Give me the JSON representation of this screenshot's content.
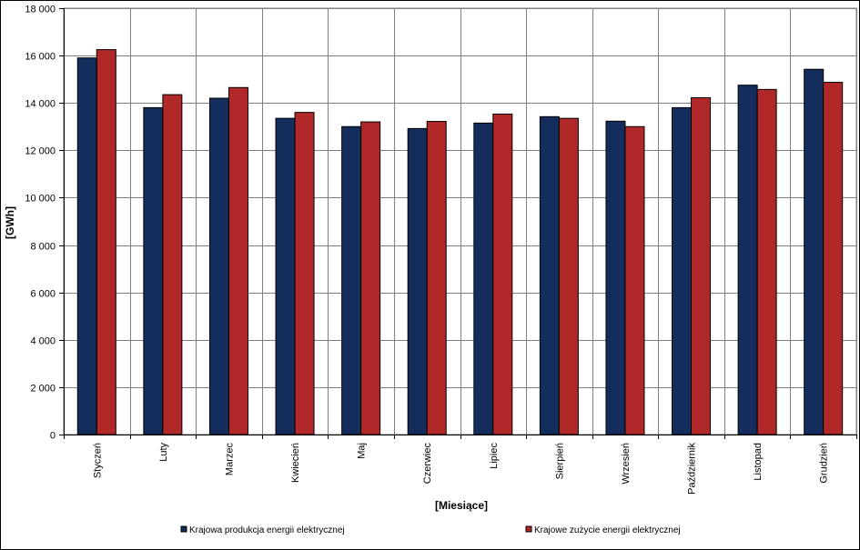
{
  "chart_data": {
    "type": "bar",
    "ylabel": "[GWh]",
    "xlabel": "[Miesiące]",
    "ylim": [
      0,
      18000
    ],
    "ytick_step": 2000,
    "yticks": [
      "0",
      "2 000",
      "4 000",
      "6 000",
      "8 000",
      "10 000",
      "12 000",
      "14 000",
      "16 000",
      "18 000"
    ],
    "grid": true,
    "legend_position": "bottom",
    "categories": [
      "Styczeń",
      "Luty",
      "Marzec",
      "Kwiecień",
      "Maj",
      "Czerwiec",
      "Lipiec",
      "Sierpień",
      "Wrzesień",
      "Październik",
      "Listopad",
      "Grudzień"
    ],
    "series": [
      {
        "name": "Krajowa produkcja energii elektrycznej",
        "color": "#142d5c",
        "values": [
          15900,
          13800,
          14200,
          13350,
          13000,
          12920,
          13150,
          13420,
          13230,
          13800,
          14750,
          15420
        ]
      },
      {
        "name": "Krajowe zużycie energii elektrycznej",
        "color": "#b02828",
        "values": [
          16250,
          14350,
          14650,
          13600,
          13200,
          13220,
          13530,
          13350,
          13000,
          14220,
          14570,
          14870
        ]
      }
    ]
  }
}
